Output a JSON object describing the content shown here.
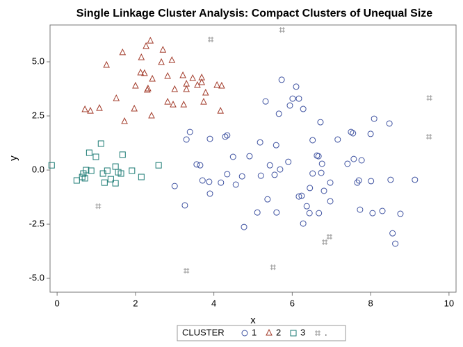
{
  "chart_data": {
    "type": "scatter",
    "title": "Single Linkage Cluster Analysis: Compact Clusters of Unequal Size",
    "x_label": "x",
    "y_label": "y",
    "xlim": [
      -0.18,
      10.18
    ],
    "ylim": [
      -5.64,
      6.7
    ],
    "xticks": [
      0,
      2,
      4,
      6,
      8,
      10
    ],
    "yticks": [
      {
        "value": -5,
        "label": "-5.0"
      },
      {
        "value": -2.5,
        "label": "-2.5"
      },
      {
        "value": 0,
        "label": "0.0"
      },
      {
        "value": 2.5,
        "label": "2.5"
      },
      {
        "value": 5,
        "label": "5.0"
      }
    ],
    "legend_title": "CLUSTER",
    "legend_position": "bottom",
    "series": [
      {
        "name": "1",
        "color": "#3d51a0",
        "marker": "circle",
        "x": [
          3.3,
          3.39,
          3.9,
          3.56,
          3.65,
          3.71,
          3.0,
          3.26,
          3.88,
          3.9,
          4.18,
          4.29,
          4.34,
          4.34,
          4.49,
          4.56,
          4.72,
          4.77,
          4.91,
          5.18,
          5.2,
          5.32,
          5.37,
          5.43,
          5.55,
          5.6,
          5.59,
          5.69,
          5.73,
          5.66,
          5.11,
          5.9,
          5.94,
          6.01,
          6.1,
          6.17,
          6.28,
          6.17,
          6.24,
          6.28,
          6.37,
          6.44,
          6.45,
          6.52,
          6.52,
          6.63,
          6.67,
          6.74,
          6.81,
          6.68,
          6.76,
          6.72,
          6.97,
          6.97,
          7.16,
          7.41,
          7.5,
          7.55,
          7.57,
          7.66,
          7.7,
          7.77,
          7.73,
          8.0,
          8.01,
          8.05,
          8.3,
          8.48,
          8.09,
          8.51,
          8.56,
          8.63,
          8.76,
          9.13
        ],
        "y": [
          1.41,
          1.76,
          1.44,
          0.26,
          0.22,
          -0.48,
          -0.74,
          -1.63,
          -0.54,
          -1.09,
          -0.58,
          1.54,
          1.6,
          -0.19,
          0.61,
          -0.67,
          -0.29,
          -2.63,
          0.64,
          1.28,
          -0.26,
          3.17,
          -1.35,
          0.22,
          -0.22,
          -1.96,
          1.15,
          0.03,
          4.17,
          2.6,
          -1.96,
          0.38,
          2.98,
          3.3,
          3.85,
          3.3,
          2.82,
          -1.22,
          -1.19,
          -2.47,
          -1.67,
          -1.99,
          -0.83,
          1.38,
          -0.16,
          0.67,
          0.64,
          -0.13,
          -0.96,
          -1.99,
          0.29,
          2.21,
          -1.44,
          -0.58,
          1.41,
          0.29,
          1.76,
          1.7,
          0.51,
          -0.58,
          -0.48,
          0.45,
          -1.83,
          1.67,
          -0.51,
          -1.99,
          -1.89,
          2.15,
          2.37,
          -0.45,
          -2.92,
          -3.4,
          -2.02,
          -0.45
        ]
      },
      {
        "name": "2",
        "color": "#a23b2a",
        "marker": "triangle",
        "x": [
          1.26,
          1.67,
          2.15,
          2.38,
          2.27,
          2.7,
          2.93,
          2.66,
          2.13,
          2.23,
          2.43,
          2.32,
          2.3,
          2.0,
          2.82,
          3.21,
          3.46,
          3.69,
          3.69,
          3.3,
          3.3,
          3.0,
          3.58,
          3.79,
          4.08,
          4.2,
          3.74,
          2.82,
          2.96,
          3.23,
          4.17,
          2.41,
          1.97,
          1.72,
          1.51,
          0.71,
          0.85,
          1.08
        ],
        "y": [
          4.84,
          5.42,
          5.19,
          5.96,
          5.71,
          5.54,
          5.06,
          4.97,
          4.49,
          4.46,
          4.2,
          3.75,
          3.69,
          3.88,
          4.33,
          4.36,
          4.23,
          4.26,
          4.04,
          3.97,
          3.72,
          3.72,
          3.91,
          3.56,
          3.91,
          3.88,
          3.14,
          3.14,
          3.01,
          3.01,
          2.72,
          2.5,
          2.82,
          2.24,
          3.3,
          2.79,
          2.72,
          2.85
        ]
      },
      {
        "name": "3",
        "color": "#1a7a73",
        "marker": "square",
        "x": [
          -0.14,
          0.5,
          0.64,
          0.67,
          0.74,
          0.71,
          0.82,
          0.87,
          0.99,
          1.12,
          1.17,
          1.21,
          1.28,
          1.37,
          1.49,
          1.49,
          1.56,
          1.63,
          1.67,
          1.91,
          2.15,
          2.59
        ],
        "y": [
          0.22,
          -0.48,
          -0.32,
          -0.16,
          0,
          -0.38,
          0.8,
          -0.03,
          0.61,
          1.22,
          -0.16,
          -0.58,
          -0.03,
          -0.42,
          0.16,
          -0.61,
          -0.1,
          -0.16,
          0.71,
          -0.03,
          -0.32,
          0.22
        ]
      },
      {
        "name": ".",
        "color": "#9a9a9a",
        "marker": "hash",
        "x": [
          5.74,
          3.92,
          9.5,
          9.49,
          1.05,
          6.95,
          6.83,
          3.3,
          5.51
        ],
        "y": [
          6.47,
          6.03,
          3.33,
          1.54,
          -1.67,
          -3.08,
          -3.33,
          -4.65,
          -4.49
        ]
      }
    ]
  }
}
